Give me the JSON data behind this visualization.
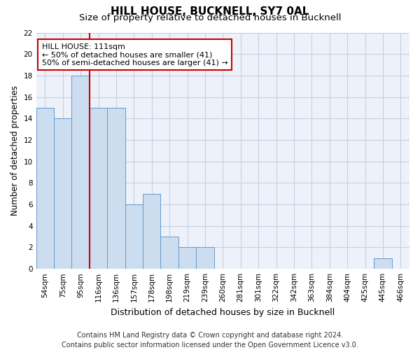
{
  "title": "HILL HOUSE, BUCKNELL, SY7 0AL",
  "subtitle": "Size of property relative to detached houses in Bucknell",
  "xlabel": "Distribution of detached houses by size in Bucknell",
  "ylabel": "Number of detached properties",
  "bar_labels": [
    "54sqm",
    "75sqm",
    "95sqm",
    "116sqm",
    "136sqm",
    "157sqm",
    "178sqm",
    "198sqm",
    "219sqm",
    "239sqm",
    "260sqm",
    "281sqm",
    "301sqm",
    "322sqm",
    "342sqm",
    "363sqm",
    "384sqm",
    "404sqm",
    "425sqm",
    "445sqm",
    "466sqm"
  ],
  "bar_values": [
    15,
    14,
    18,
    15,
    15,
    6,
    7,
    3,
    2,
    2,
    0,
    0,
    0,
    0,
    0,
    0,
    0,
    0,
    0,
    1,
    0
  ],
  "bar_color": "#ccddf0",
  "bar_edgecolor": "#6699cc",
  "vline_color": "#cc0000",
  "annotation_text": "HILL HOUSE: 111sqm\n← 50% of detached houses are smaller (41)\n50% of semi-detached houses are larger (41) →",
  "annotation_box_facecolor": "#ffffff",
  "annotation_box_edgecolor": "#cc0000",
  "ylim": [
    0,
    22
  ],
  "yticks": [
    0,
    2,
    4,
    6,
    8,
    10,
    12,
    14,
    16,
    18,
    20,
    22
  ],
  "background_color": "#edf2fa",
  "grid_color": "#c8d0e0",
  "footer": "Contains HM Land Registry data © Crown copyright and database right 2024.\nContains public sector information licensed under the Open Government Licence v3.0.",
  "title_fontsize": 11,
  "subtitle_fontsize": 9.5,
  "xlabel_fontsize": 9,
  "ylabel_fontsize": 8.5,
  "tick_fontsize": 7.5,
  "annotation_fontsize": 8,
  "footer_fontsize": 7
}
